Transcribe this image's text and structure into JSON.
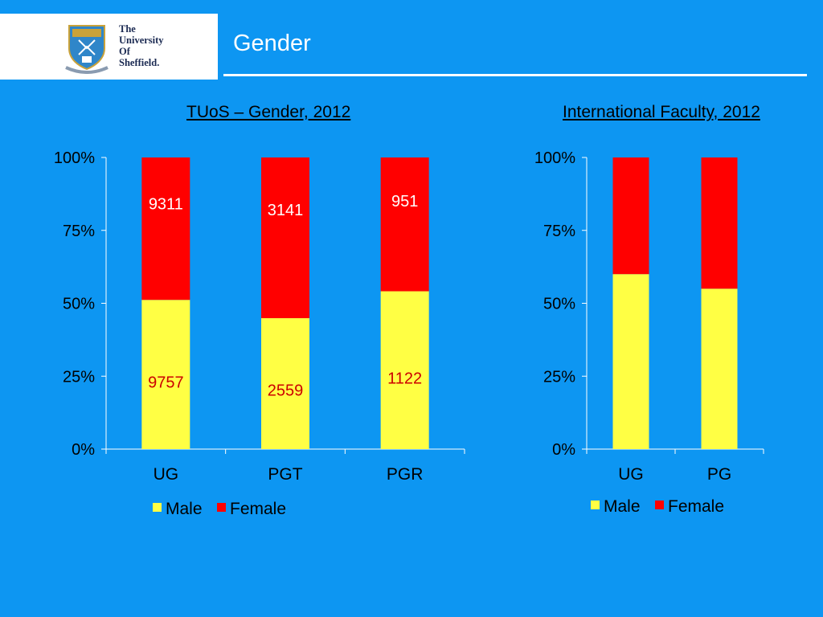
{
  "header": {
    "logo_text": "The\nUniversity\nOf\nSheffield.",
    "slide_title": "Gender"
  },
  "colors": {
    "background": "#0d96f2",
    "male": "#ffff44",
    "female": "#ff0000",
    "data_label": "#cc0000"
  },
  "chart_data": [
    {
      "type": "bar",
      "stacked": "percent",
      "title": "TUoS – Gender,  2012",
      "categories": [
        "UG",
        "PGT",
        "PGR"
      ],
      "series": [
        {
          "name": "Male",
          "values": [
            9757,
            2559,
            1122
          ],
          "labels": [
            "9757",
            "2559",
            "1122"
          ]
        },
        {
          "name": "Female",
          "values": [
            9311,
            3141,
            951
          ],
          "labels": [
            "9311",
            "3141",
            "951"
          ]
        }
      ],
      "y_ticks": [
        "0%",
        "25%",
        "50%",
        "75%",
        "100%"
      ],
      "ylim": [
        0,
        100
      ],
      "legend": "bottom",
      "grid": false
    },
    {
      "type": "bar",
      "stacked": "percent",
      "title": "International Faculty, 2012",
      "categories": [
        "UG",
        "PG"
      ],
      "series": [
        {
          "name": "Male",
          "values": [
            60,
            55
          ]
        },
        {
          "name": "Female",
          "values": [
            40,
            45
          ]
        }
      ],
      "y_ticks": [
        "0%",
        "25%",
        "50%",
        "75%",
        "100%"
      ],
      "ylim": [
        0,
        100
      ],
      "legend": "bottom",
      "grid": false
    }
  ]
}
